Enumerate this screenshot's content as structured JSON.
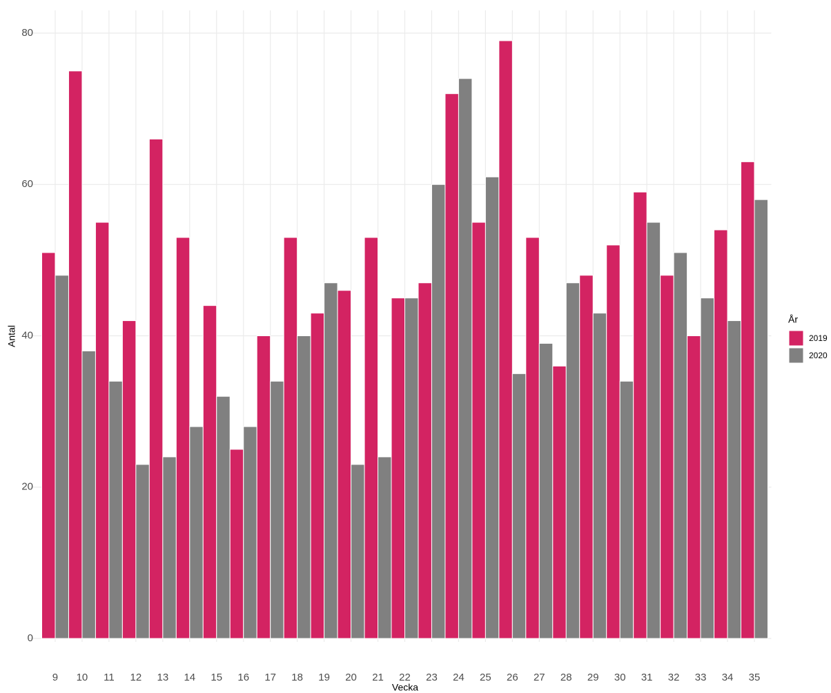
{
  "chart_data": {
    "type": "bar",
    "x_label": "Vecka",
    "y_label": "Antal",
    "legend_title": "År",
    "categories": [
      "9",
      "10",
      "11",
      "12",
      "13",
      "14",
      "15",
      "16",
      "17",
      "18",
      "19",
      "20",
      "21",
      "22",
      "23",
      "24",
      "25",
      "26",
      "27",
      "28",
      "29",
      "30",
      "31",
      "32",
      "33",
      "34",
      "35"
    ],
    "series": [
      {
        "name": "2019",
        "color": "#d32362",
        "values": [
          51,
          75,
          55,
          42,
          66,
          53,
          44,
          25,
          40,
          53,
          43,
          46,
          53,
          45,
          47,
          72,
          55,
          79,
          53,
          36,
          48,
          52,
          59,
          48,
          40,
          54,
          63
        ]
      },
      {
        "name": "2020",
        "color": "#808080",
        "values": [
          48,
          38,
          34,
          23,
          24,
          28,
          32,
          28,
          34,
          40,
          47,
          23,
          24,
          45,
          60,
          74,
          61,
          35,
          39,
          47,
          43,
          34,
          55,
          51,
          45,
          42,
          58
        ]
      }
    ],
    "ylim": [
      0,
      80
    ],
    "yticks": [
      0,
      20,
      40,
      60,
      80
    ],
    "grid": true,
    "legend": "right"
  }
}
